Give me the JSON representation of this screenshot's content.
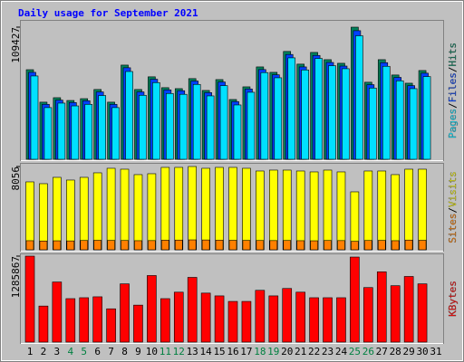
{
  "chart_data": {
    "type": "bar",
    "title": "Daily usage for September 2021",
    "title_color": "#0000ff",
    "legend_separator": "/",
    "categories": [
      "1",
      "2",
      "3",
      "4",
      "5",
      "6",
      "7",
      "8",
      "9",
      "10",
      "11",
      "12",
      "13",
      "14",
      "15",
      "16",
      "17",
      "18",
      "19",
      "20",
      "21",
      "22",
      "23",
      "24",
      "25",
      "26",
      "27",
      "28",
      "29",
      "30",
      "31"
    ],
    "category_colors": [
      "#000000",
      "#000000",
      "#000000",
      "#008040",
      "#008040",
      "#000000",
      "#000000",
      "#000000",
      "#000000",
      "#000000",
      "#008040",
      "#008040",
      "#000000",
      "#000000",
      "#000000",
      "#000000",
      "#000000",
      "#008040",
      "#008040",
      "#000000",
      "#000000",
      "#000000",
      "#000000",
      "#000000",
      "#008040",
      "#008040",
      "#000000",
      "#000000",
      "#000000",
      "#000000",
      "#000000"
    ],
    "panels": [
      {
        "ylim": [
          0,
          109427
        ],
        "yticks": [
          109427
        ],
        "series": [
          {
            "name": "Hits",
            "color": "#00805c",
            "values": [
              74200,
              47300,
              51000,
              48700,
              50200,
              57800,
              47300,
              78000,
              57800,
              68300,
              59300,
              58500,
              66800,
              57000,
              66000,
              49500,
              60000,
              76500,
              72000,
              89300,
              78800,
              88500,
              82500,
              79500,
              109427,
              63800,
              82500,
              69800,
              63000,
              73500,
              null
            ]
          },
          {
            "name": "Files",
            "color": "#0040ff",
            "values": [
              72000,
              45500,
              49000,
              47000,
              48500,
              55800,
              45500,
              75800,
              55800,
              66300,
              57500,
              56800,
              64800,
              55200,
              64000,
              47800,
              58200,
              74300,
              70000,
              86800,
              76500,
              86000,
              80200,
              77200,
              106500,
              61800,
              80000,
              67800,
              61000,
              71300,
              null
            ]
          },
          {
            "name": "Pages",
            "color": "#00e0ff",
            "values": [
              69000,
              42800,
              46500,
              44200,
              45500,
              52800,
              42800,
              72700,
              53000,
              63500,
              54500,
              53800,
              62000,
              52500,
              61000,
              45000,
              55500,
              71800,
              67500,
              84000,
              74000,
              83500,
              77500,
              75000,
              102300,
              59000,
              77000,
              65000,
              58500,
              68500,
              null
            ]
          }
        ]
      },
      {
        "ylim": [
          0,
          8056
        ],
        "yticks": [
          8056
        ],
        "series": [
          {
            "name": "Visits",
            "color": "#ffff00",
            "values": [
              6570,
              6395,
              7008,
              6745,
              7008,
              7446,
              7884,
              7796,
              7271,
              7358,
              7972,
              7972,
              8056,
              7884,
              7972,
              7972,
              7884,
              7621,
              7709,
              7709,
              7621,
              7534,
              7709,
              7534,
              5606,
              7621,
              7621,
              7271,
              7796,
              7796,
              null
            ]
          },
          {
            "name": "Sites",
            "color": "#ff8000",
            "values": [
              880,
              850,
              870,
              860,
              900,
              920,
              910,
              900,
              880,
              890,
              930,
              940,
              960,
              950,
              930,
              920,
              910,
              900,
              890,
              900,
              880,
              870,
              900,
              890,
              820,
              900,
              910,
              880,
              940,
              920,
              null
            ]
          }
        ]
      },
      {
        "ylim": [
          0,
          1285867
        ],
        "yticks": [
          1285867
        ],
        "series": [
          {
            "name": "KBytes",
            "color": "#ff0000",
            "values": [
              1285867,
              539200,
              898700,
              649800,
              663600,
              677500,
              497700,
              871000,
              553000,
              995500,
              649800,
              746600,
              967800,
              732800,
              691300,
              608300,
              608300,
              774300,
              691300,
              801900,
              746600,
              663600,
              663600,
              663600,
              1272000,
              815700,
              1050800,
              843400,
              981600,
              871000,
              null
            ]
          }
        ]
      }
    ]
  }
}
